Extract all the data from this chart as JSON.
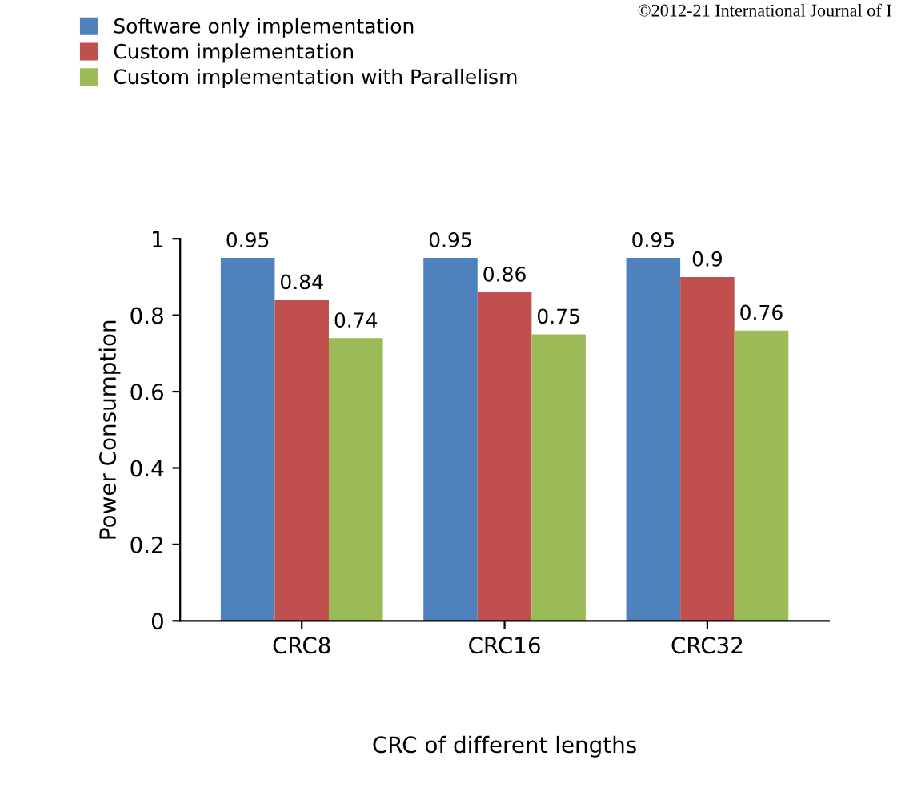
{
  "chart_data": {
    "type": "bar",
    "categories": [
      "CRC8",
      "CRC16",
      "CRC32"
    ],
    "series": [
      {
        "name": "Software only implementation",
        "color": "#4f81bd",
        "values": [
          0.95,
          0.95,
          0.95
        ]
      },
      {
        "name": "Custom implementation",
        "color": "#c0504d",
        "values": [
          0.84,
          0.86,
          0.9
        ]
      },
      {
        "name": "Custom implementation with Parallelism",
        "color": "#9bbb59",
        "values": [
          0.74,
          0.75,
          0.76
        ]
      }
    ],
    "xlabel": "CRC of different lengths",
    "ylabel": "Power Consumption",
    "ylim": [
      0,
      1
    ],
    "yticks": [
      0,
      0.2,
      0.4,
      0.6,
      0.8,
      1
    ],
    "data_labels": true,
    "grid": false,
    "legend": "top left",
    "annotations": [
      "©2012-21 International Journal of I"
    ]
  }
}
